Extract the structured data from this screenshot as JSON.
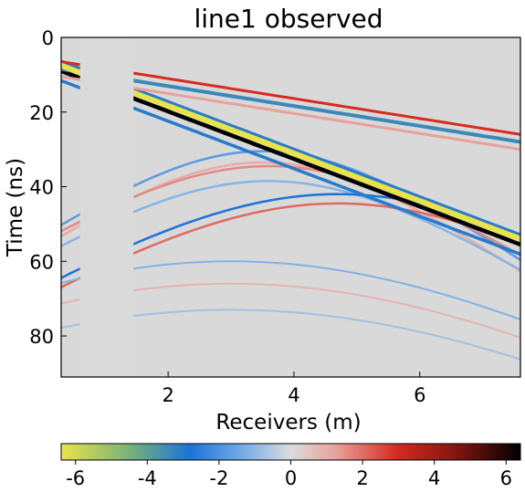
{
  "chart_data": {
    "type": "heatmap",
    "title": "line1 observed",
    "xlabel": "Receivers (m)",
    "ylabel": "Time (ns)",
    "xlim": [
      0.3,
      7.6
    ],
    "ylim": [
      91,
      0
    ],
    "x_ticks": [
      2,
      4,
      6
    ],
    "y_ticks": [
      0,
      20,
      40,
      60,
      80
    ],
    "colorbar": {
      "range": [
        -6.4,
        6.4
      ],
      "ticks": [
        -6,
        -4,
        -2,
        0,
        2,
        4,
        6
      ],
      "colors": [
        "#e9e34b",
        "#1c73d8",
        "#dcdcdc",
        "#d62b20",
        "#000000"
      ]
    },
    "missing_traces_x": [
      0.6,
      1.45
    ],
    "events": [
      {
        "kind": "direct-air-wave",
        "x": [
          0.3,
          7.6
        ],
        "t": [
          8.5,
          28.0
        ],
        "peak": -6.5
      },
      {
        "kind": "direct-ground-wave",
        "x": [
          0.3,
          7.6
        ],
        "t": [
          9.0,
          55.5
        ],
        "peak": 6.5
      },
      {
        "kind": "reflection-hyperbola",
        "apex_x": 3.5,
        "apex_t": 30.5,
        "amplitude": -2.2
      },
      {
        "kind": "reflection-hyperbola",
        "apex_x": 3.6,
        "apex_t": 34.5,
        "amplitude": 1.8
      },
      {
        "kind": "reflection-hyperbola",
        "apex_x": 4.7,
        "apex_t": 42.0,
        "amplitude": -3.0
      },
      {
        "kind": "reflection-hyperbola",
        "apex_x": 4.9,
        "apex_t": 43.0,
        "amplitude": 2.2
      }
    ]
  }
}
